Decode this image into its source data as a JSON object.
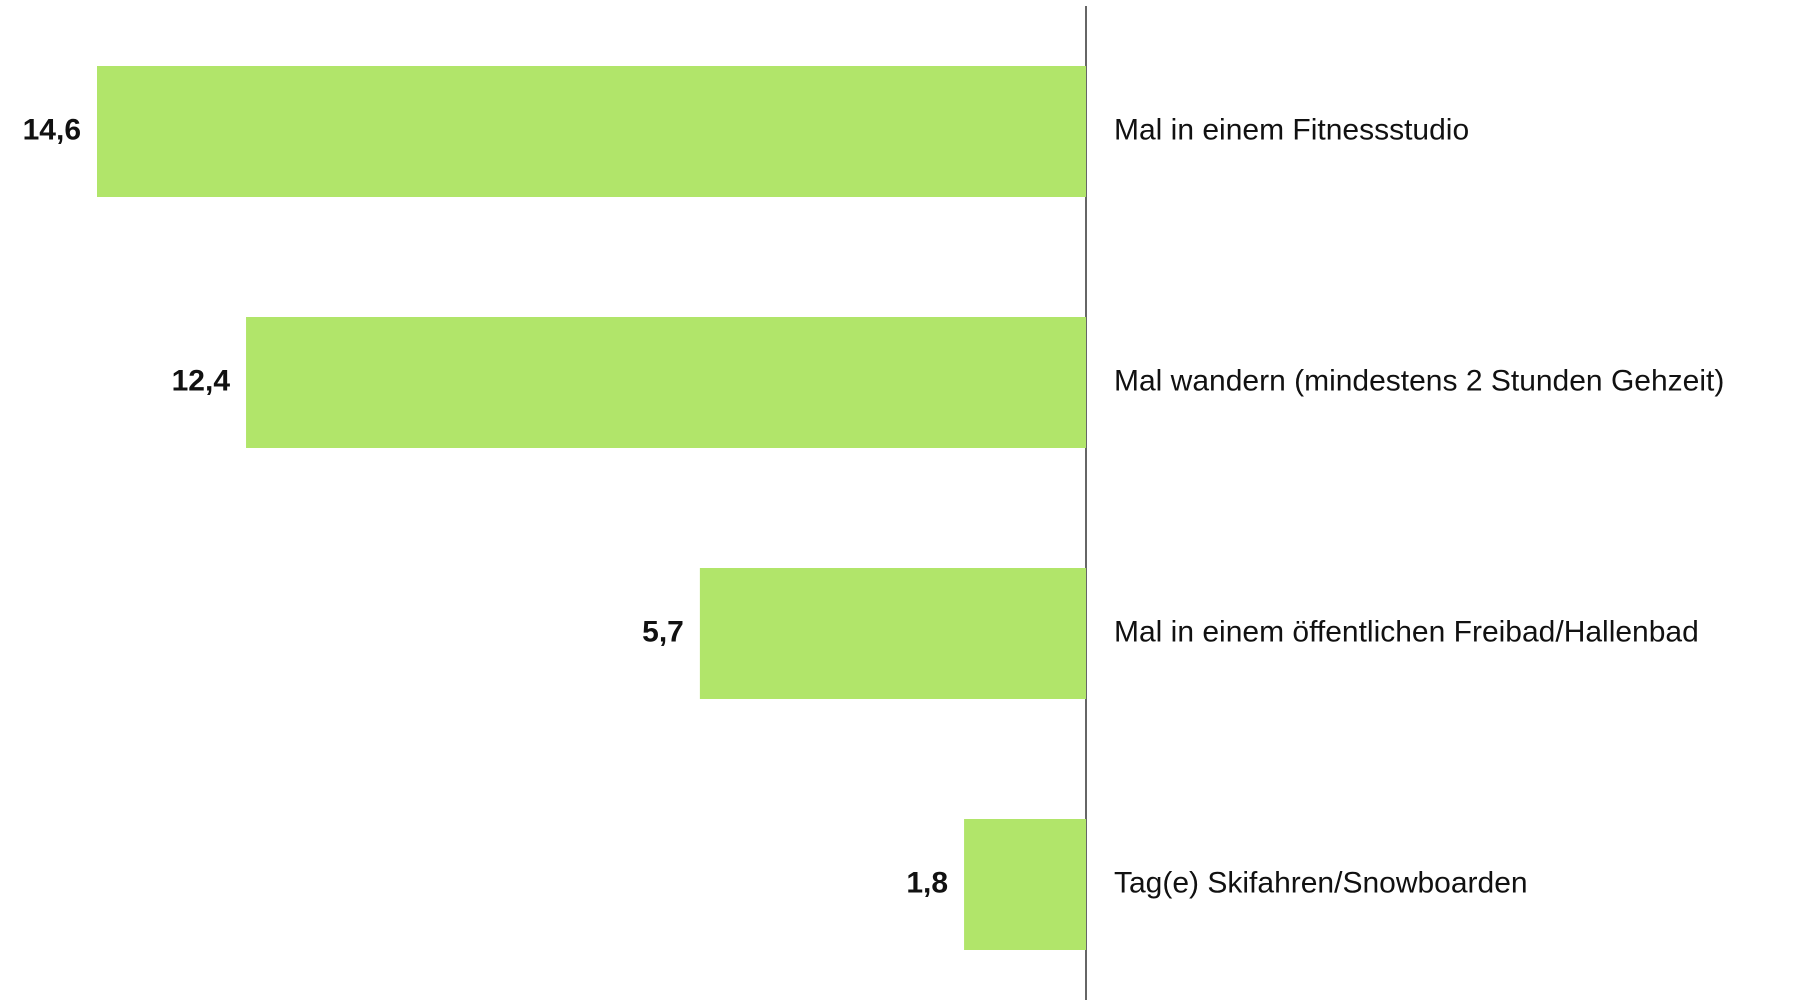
{
  "chart_data": {
    "type": "barh",
    "categories": [
      "Mal in einem Fitnessstudio",
      "Mal wandern (mindestens 2 Stunden Gehzeit)",
      "Mal in einem öffentlichen Freibad/Hallenbad",
      "Tag(e) Skifahren/Snowboarden"
    ],
    "values": [
      14.6,
      12.4,
      5.7,
      1.8
    ],
    "value_labels": [
      "14,6",
      "12,4",
      "5,7",
      "1,8"
    ],
    "color": "#b1e56a"
  }
}
